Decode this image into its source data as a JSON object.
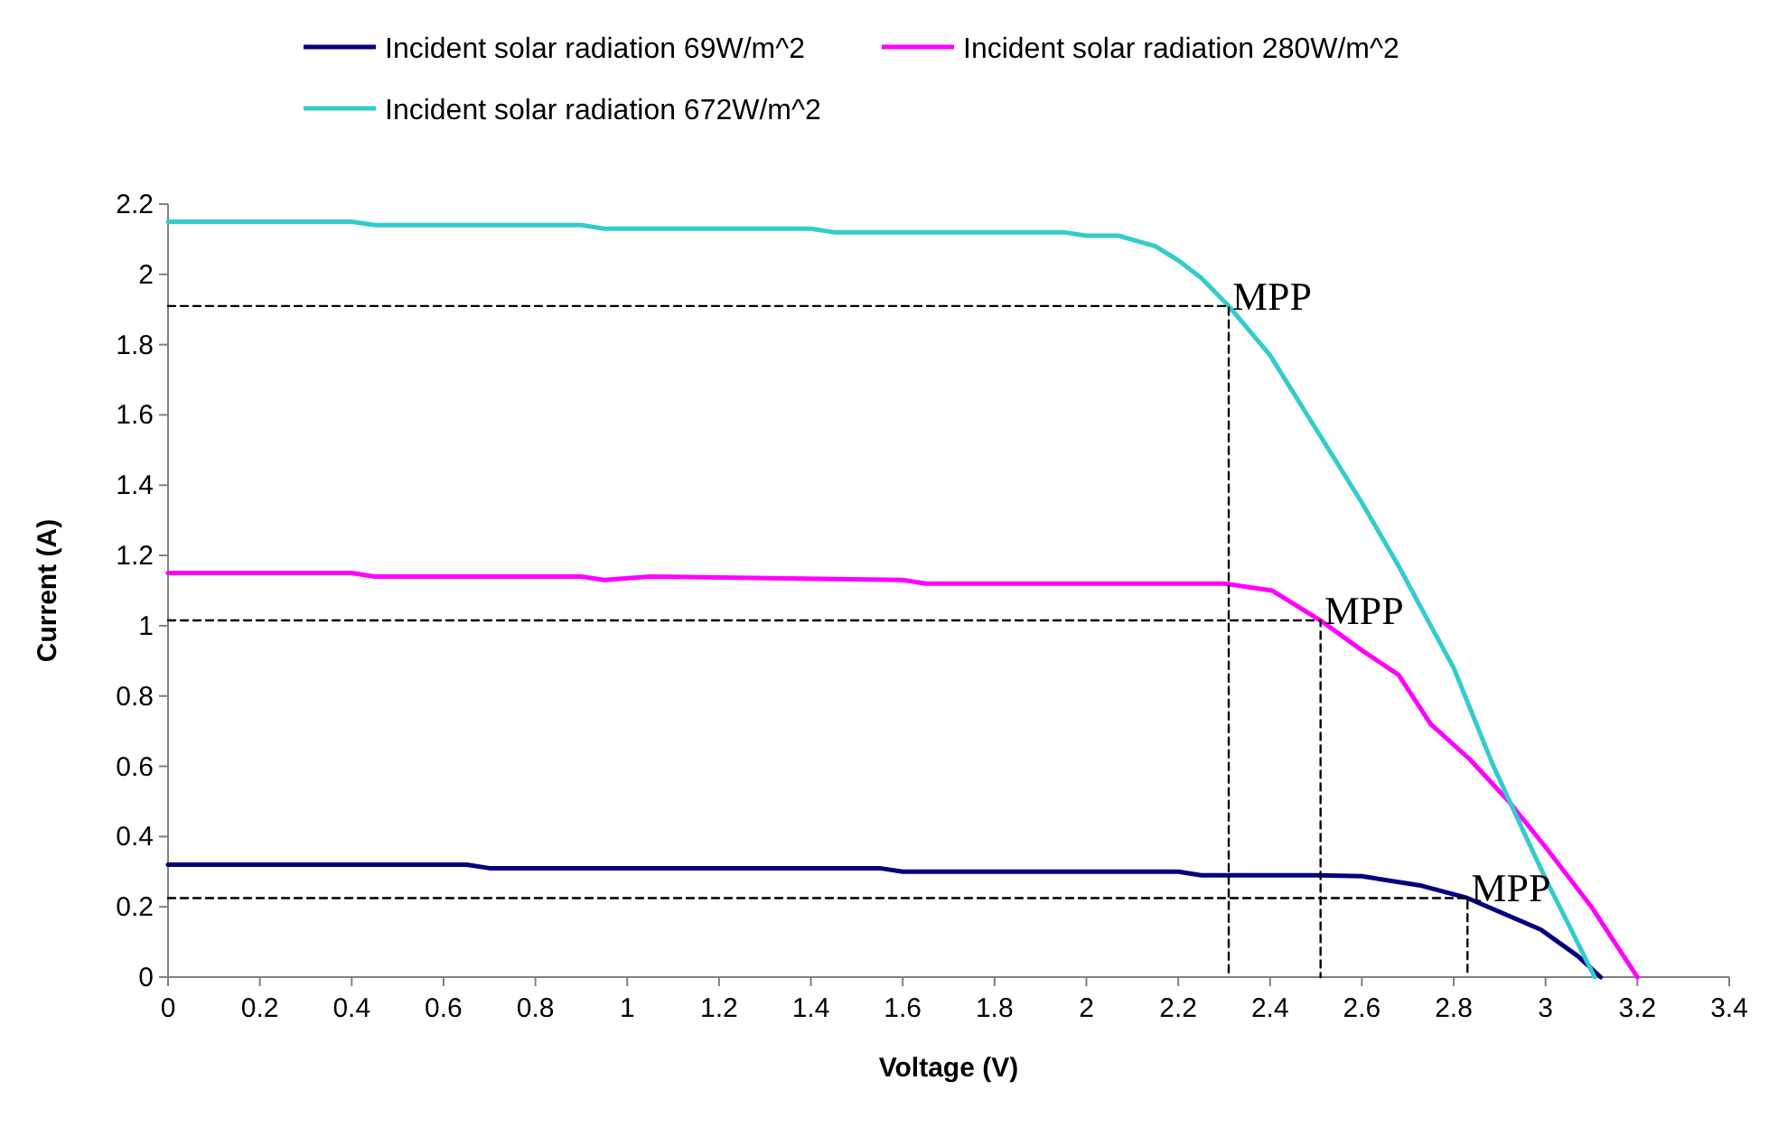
{
  "chart_data": {
    "type": "line",
    "xlabel": "Voltage (V)",
    "ylabel": "Current (A)",
    "xlim": [
      0,
      3.4
    ],
    "ylim": [
      0,
      2.2
    ],
    "xticks": [
      0,
      0.2,
      0.4,
      0.6,
      0.8,
      1,
      1.2,
      1.4,
      1.6,
      1.8,
      2,
      2.2,
      2.4,
      2.6,
      2.8,
      3,
      3.2,
      3.4
    ],
    "yticks": [
      0,
      0.2,
      0.4,
      0.6,
      0.8,
      1,
      1.2,
      1.4,
      1.6,
      1.8,
      2,
      2.2
    ],
    "grid": false,
    "legend": "top",
    "marker": "none",
    "line_style": "solid",
    "series": [
      {
        "name": "Incident solar radiation 69W/m^2",
        "color": "#000080",
        "x": [
          0,
          0.65,
          0.7,
          1.55,
          1.6,
          2.2,
          2.25,
          2.5,
          2.6,
          2.73,
          2.83,
          2.99,
          3.07,
          3.12
        ],
        "values": [
          0.32,
          0.32,
          0.31,
          0.31,
          0.3,
          0.3,
          0.29,
          0.29,
          0.287,
          0.26,
          0.225,
          0.135,
          0.06,
          0
        ]
      },
      {
        "name": "Incident solar radiation 280W/m^2",
        "color": "#ff00ff",
        "x": [
          0,
          0.4,
          0.45,
          0.9,
          0.95,
          1.05,
          1.6,
          1.65,
          2.1,
          2.3,
          2.405,
          2.51,
          2.6,
          2.68,
          2.75,
          2.835,
          2.92,
          3.0,
          3.1,
          3.2
        ],
        "values": [
          1.15,
          1.15,
          1.14,
          1.14,
          1.13,
          1.14,
          1.13,
          1.12,
          1.12,
          1.12,
          1.1,
          1.015,
          0.93,
          0.86,
          0.72,
          0.62,
          0.5,
          0.37,
          0.2,
          0
        ]
      },
      {
        "name": "Incident solar radiation 672W/m^2",
        "color": "#33cccc",
        "x": [
          0,
          0.4,
          0.45,
          0.9,
          0.95,
          1.4,
          1.45,
          1.95,
          2.0,
          2.07,
          2.15,
          2.2,
          2.25,
          2.31,
          2.4,
          2.5,
          2.6,
          2.68,
          2.75,
          2.8,
          2.885,
          2.95,
          3.0,
          3.05,
          3.107
        ],
        "values": [
          2.15,
          2.15,
          2.14,
          2.14,
          2.13,
          2.13,
          2.12,
          2.12,
          2.11,
          2.11,
          2.08,
          2.04,
          1.99,
          1.91,
          1.77,
          1.56,
          1.35,
          1.17,
          1.0,
          0.88,
          0.605,
          0.42,
          0.28,
          0.15,
          0
        ]
      },
      {
        "color": "#000000",
        "line_style": "dashed",
        "x": [
          0,
          2.31,
          2.31
        ],
        "values": [
          1.91,
          1.91,
          0
        ]
      },
      {
        "color": "#000000",
        "line_style": "dashed",
        "x": [
          0,
          2.51,
          2.51
        ],
        "values": [
          1.015,
          1.015,
          0
        ]
      },
      {
        "color": "#000000",
        "line_style": "dashed",
        "x": [
          0,
          2.83,
          2.83
        ],
        "values": [
          0.225,
          0.225,
          0
        ]
      }
    ],
    "annotations": [
      {
        "text": "MPP",
        "x": 2.31,
        "y": 1.91
      },
      {
        "text": "MPP",
        "x": 2.51,
        "y": 1.015
      },
      {
        "text": "MPP",
        "x": 2.83,
        "y": 0.225
      }
    ]
  }
}
